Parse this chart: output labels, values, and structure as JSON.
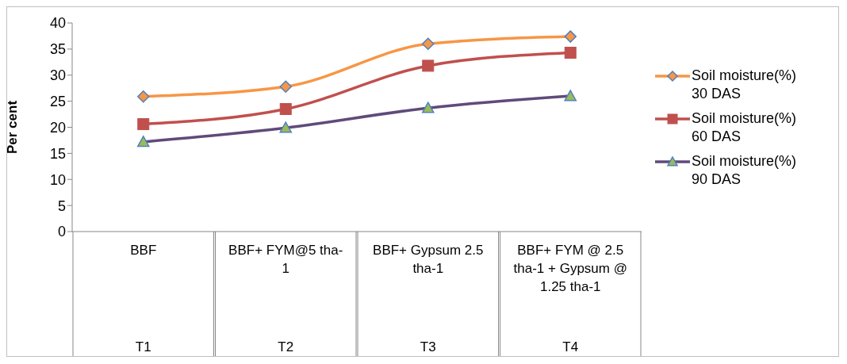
{
  "chart_data": {
    "type": "line",
    "ylabel": "Per cent",
    "categories": [
      "BBF",
      "BBF+ FYM@5 tha-1",
      "BBF+ Gypsum 2.5 tha-1",
      "BBF+ FYM @ 2.5 tha-1 + Gypsum @ 1.25 tha-1"
    ],
    "annotations": [
      "T1",
      "T2",
      "T3",
      "T4"
    ],
    "ylim": [
      0,
      40
    ],
    "yticks": [
      0,
      5,
      10,
      15,
      20,
      25,
      30,
      35,
      40
    ],
    "legend": "right",
    "line_style": "solid",
    "series": [
      {
        "name": "Soil moisture(%) 30 DAS",
        "color": "#f79646",
        "marker": "diamond",
        "values": [
          25.9,
          27.8,
          36.0,
          37.4
        ]
      },
      {
        "name": "Soil moisture(%) 60 DAS",
        "color": "#c0504d",
        "marker": "square",
        "values": [
          20.6,
          23.5,
          31.8,
          34.3
        ]
      },
      {
        "name": "Soil moisture(%) 90 DAS",
        "color": "#604a7b",
        "marker": "triangle",
        "values": [
          17.2,
          19.9,
          23.7,
          26.0
        ]
      }
    ]
  }
}
